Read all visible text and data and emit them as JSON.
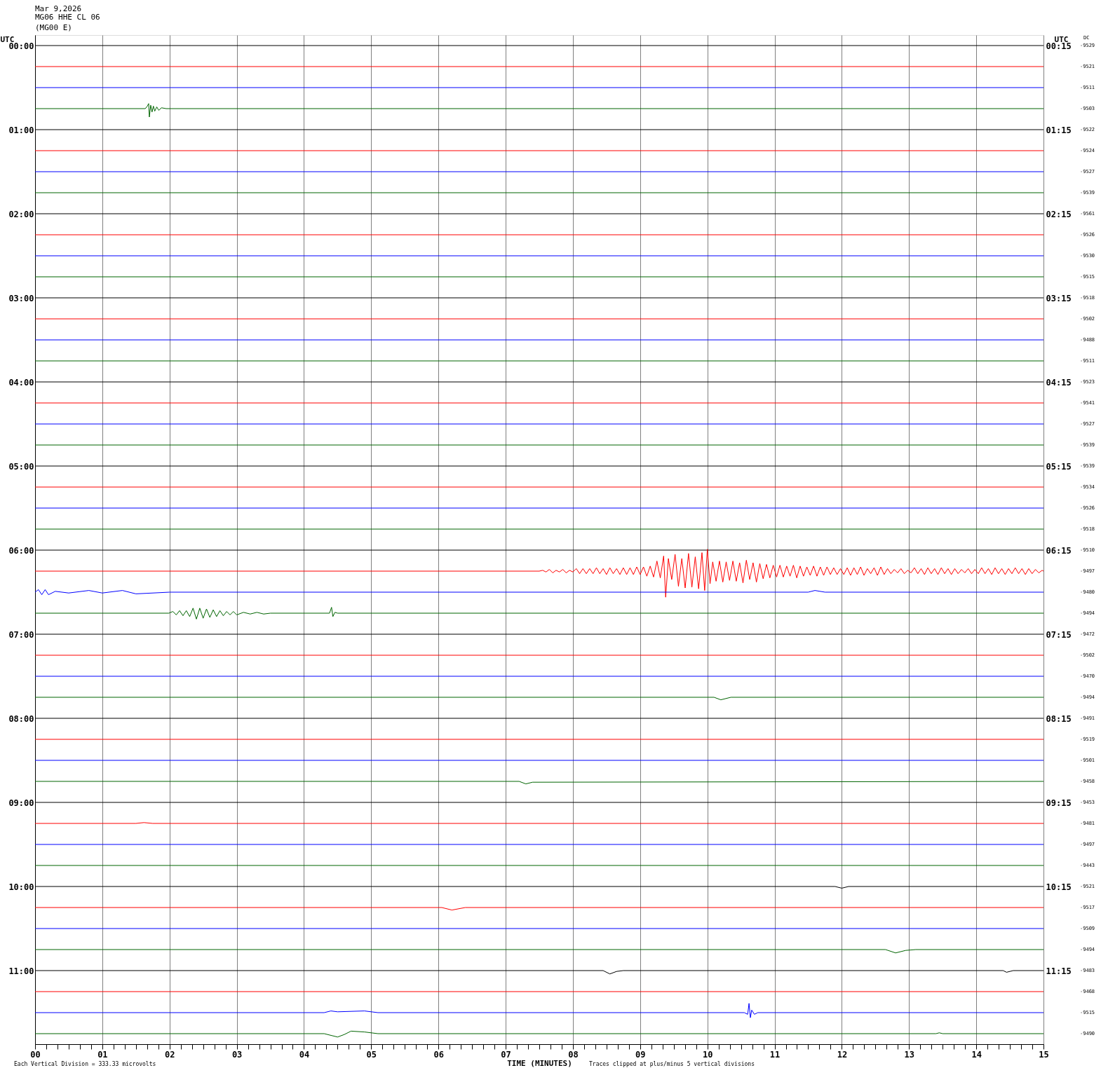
{
  "chart_data": {
    "type": "line",
    "title": "Mar 9,2026",
    "subtitle": "MG06 HHE CL 06\n(MG00 E)",
    "xlabel": "TIME (MINUTES)",
    "ylabel": "UTC",
    "y2label": "UTC",
    "annotations": [
      "Each Vertical Division =  333.33 microvolts",
      "Traces clipped at plus/minus 5 vertical divisions",
      "DC",
      "-9529",
      "-9521",
      "-9511",
      "-9503",
      "-9522",
      "-9524",
      "-9527",
      "-9539",
      "-9561",
      "-9526",
      "-9530",
      "-9515",
      "-9518",
      "-9502",
      "-9488",
      "-9511",
      "-9523",
      "-9541",
      "-9527",
      "-9539",
      "-9539",
      "-9534",
      "-9526",
      "-9518",
      "-9510",
      "-9497",
      "-9480",
      "-9494",
      "-9472",
      "-9502",
      "-9470",
      "-9494",
      "-9491",
      "-9519",
      "-9501",
      "-9458",
      "-9453",
      "-9481",
      "-9497",
      "-9443",
      "-9521",
      "-9517",
      "-9509",
      "-9494",
      "-9483",
      "-9468",
      "-9515",
      "-9490"
    ],
    "x": [
      0,
      15
    ],
    "xlim": [
      0,
      15
    ],
    "xticks": [
      {
        "value": 0,
        "label": "00"
      },
      {
        "value": 0.167,
        "label": null
      },
      {
        "value": 0.333,
        "label": null
      },
      {
        "value": 0.5,
        "label": null
      },
      {
        "value": 0.667,
        "label": null
      },
      {
        "value": 0.833,
        "label": null
      },
      {
        "value": 1,
        "label": "01"
      },
      {
        "value": 1.167,
        "label": null
      },
      {
        "value": 1.333,
        "label": null
      },
      {
        "value": 1.5,
        "label": null
      },
      {
        "value": 1.667,
        "label": null
      },
      {
        "value": 1.833,
        "label": null
      },
      {
        "value": 2,
        "label": "02"
      },
      {
        "value": 2.167,
        "label": null
      },
      {
        "value": 2.333,
        "label": null
      },
      {
        "value": 2.5,
        "label": null
      },
      {
        "value": 2.667,
        "label": null
      },
      {
        "value": 2.833,
        "label": null
      },
      {
        "value": 3,
        "label": "03"
      },
      {
        "value": 3.167,
        "label": null
      },
      {
        "value": 3.333,
        "label": null
      },
      {
        "value": 3.5,
        "label": null
      },
      {
        "value": 3.667,
        "label": null
      },
      {
        "value": 3.833,
        "label": null
      },
      {
        "value": 4,
        "label": "04"
      },
      {
        "value": 4.167,
        "label": null
      },
      {
        "value": 4.333,
        "label": null
      },
      {
        "value": 4.5,
        "label": null
      },
      {
        "value": 4.667,
        "label": null
      },
      {
        "value": 4.833,
        "label": null
      },
      {
        "value": 5,
        "label": "05"
      },
      {
        "value": 5.167,
        "label": null
      },
      {
        "value": 5.333,
        "label": null
      },
      {
        "value": 5.5,
        "label": null
      },
      {
        "value": 5.667,
        "label": null
      },
      {
        "value": 5.833,
        "label": null
      },
      {
        "value": 6,
        "label": "06"
      },
      {
        "value": 6.167,
        "label": null
      },
      {
        "value": 6.333,
        "label": null
      },
      {
        "value": 6.5,
        "label": null
      },
      {
        "value": 6.667,
        "label": null
      },
      {
        "value": 6.833,
        "label": null
      },
      {
        "value": 7,
        "label": "07"
      },
      {
        "value": 7.167,
        "label": null
      },
      {
        "value": 7.333,
        "label": null
      },
      {
        "value": 7.5,
        "label": null
      },
      {
        "value": 7.667,
        "label": null
      },
      {
        "value": 7.833,
        "label": null
      },
      {
        "value": 8,
        "label": "08"
      },
      {
        "value": 8.167,
        "label": null
      },
      {
        "value": 8.333,
        "label": null
      },
      {
        "value": 8.5,
        "label": null
      },
      {
        "value": 8.667,
        "label": null
      },
      {
        "value": 8.833,
        "label": null
      },
      {
        "value": 9,
        "label": "09"
      },
      {
        "value": 9.167,
        "label": null
      },
      {
        "value": 9.333,
        "label": null
      },
      {
        "value": 9.5,
        "label": null
      },
      {
        "value": 9.667,
        "label": null
      },
      {
        "value": 9.833,
        "label": null
      },
      10,
      {
        "value": 10.167,
        "label": null
      },
      {
        "value": 10.333,
        "label": null
      },
      {
        "value": 10.5,
        "label": null
      },
      {
        "value": 10.667,
        "label": null
      },
      {
        "value": 10.833,
        "label": null
      },
      11,
      {
        "value": 11.167,
        "label": null
      },
      {
        "value": 11.333,
        "label": null
      },
      {
        "value": 11.5,
        "label": null
      },
      {
        "value": 11.667,
        "label": null
      },
      {
        "value": 11.833,
        "label": null
      },
      12,
      {
        "value": 12.167,
        "label": null
      },
      {
        "value": 12.333,
        "label": null
      },
      {
        "value": 12.5,
        "label": null
      },
      {
        "value": 12.667,
        "label": null
      },
      {
        "value": 12.833,
        "label": null
      },
      13,
      {
        "value": 13.167,
        "label": null
      },
      {
        "value": 13.333,
        "label": null
      },
      {
        "value": 13.5,
        "label": null
      },
      {
        "value": 13.667,
        "label": null
      },
      {
        "value": 13.833,
        "label": null
      },
      14,
      {
        "value": 14.167,
        "label": null
      },
      {
        "value": 14.333,
        "label": null
      },
      {
        "value": 14.5,
        "label": null
      },
      {
        "value": 14.667,
        "label": null
      },
      {
        "value": 14.833,
        "label": null
      },
      15
    ],
    "ylim": [
      11.875,
      -0.125
    ],
    "yticks": [
      {
        "value": 0,
        "label": "00:00"
      },
      {
        "value": 1,
        "label": "01:00"
      },
      {
        "value": 2,
        "label": "02:00"
      },
      {
        "value": 3,
        "label": "03:00"
      },
      {
        "value": 4,
        "label": "04:00"
      },
      {
        "value": 5,
        "label": "05:00"
      },
      {
        "value": 6,
        "label": "06:00"
      },
      {
        "value": 7,
        "label": "07:00"
      },
      {
        "value": 8,
        "label": "08:00"
      },
      {
        "value": 9,
        "label": "09:00"
      },
      {
        "value": 10,
        "label": "10:00"
      },
      {
        "value": 11,
        "label": "11:00"
      }
    ],
    "y2lim": [
      12.125,
      0.125
    ],
    "y2ticks": [
      {
        "value": 0.25,
        "label": "00:15"
      },
      {
        "value": 1.25,
        "label": "01:15"
      },
      {
        "value": 2.25,
        "label": "02:15"
      },
      {
        "value": 3.25,
        "label": "03:15"
      },
      {
        "value": 4.25,
        "label": "04:15"
      },
      {
        "value": 5.25,
        "label": "05:15"
      },
      {
        "value": 6.25,
        "label": "06:15"
      },
      {
        "value": 7.25,
        "label": "07:15"
      },
      {
        "value": 8.25,
        "label": "08:15"
      },
      {
        "value": 9.25,
        "label": "09:15"
      },
      {
        "value": 10.25,
        "label": "10:15"
      },
      {
        "value": 11.25,
        "label": "11:15"
      }
    ],
    "grid": "x",
    "legend": false,
    "series": [
      {
        "color": "#000000",
        "values": [
          0,
          0
        ]
      },
      {
        "color": "#ff0000",
        "values": [
          0.25,
          0.25
        ]
      },
      {
        "color": "#0000ff",
        "values": [
          0.5,
          0.5
        ]
      },
      {
        "color": "#006400",
        "x": [
          0,
          1.64,
          1.67,
          1.69,
          1.7,
          1.72,
          1.74,
          1.76,
          1.78,
          1.81,
          1.84,
          1.88,
          1.95,
          15
        ],
        "values": [
          0.75,
          0.75,
          0.72,
          0.69,
          0.85,
          0.71,
          0.79,
          0.72,
          0.78,
          0.73,
          0.77,
          0.74,
          0.75,
          0.75
        ]
      },
      {
        "color": "#000000",
        "values": [
          1,
          1
        ]
      },
      {
        "color": "#ff0000",
        "values": [
          1.25,
          1.25
        ]
      },
      {
        "color": "#0000ff",
        "values": [
          1.5,
          1.5
        ]
      },
      {
        "color": "#006400",
        "values": [
          1.75,
          1.75
        ]
      },
      {
        "color": "#000000",
        "values": [
          2,
          2
        ]
      },
      {
        "color": "#ff0000",
        "values": [
          2.25,
          2.25
        ]
      },
      {
        "color": "#0000ff",
        "values": [
          2.5,
          2.5
        ]
      },
      {
        "color": "#006400",
        "values": [
          2.75,
          2.75
        ]
      },
      {
        "color": "#000000",
        "values": [
          3,
          3
        ]
      },
      {
        "color": "#ff0000",
        "values": [
          3.25,
          3.25
        ]
      },
      {
        "color": "#0000ff",
        "values": [
          3.5,
          3.5
        ]
      },
      {
        "color": "#006400",
        "values": [
          3.75,
          3.75
        ]
      },
      {
        "color": "#000000",
        "values": [
          4,
          4
        ]
      },
      {
        "color": "#ff0000",
        "values": [
          4.25,
          4.25
        ]
      },
      {
        "color": "#0000ff",
        "values": [
          4.5,
          4.5
        ]
      },
      {
        "color": "#006400",
        "values": [
          4.75,
          4.75
        ]
      },
      {
        "color": "#000000",
        "values": [
          5,
          5
        ]
      },
      {
        "color": "#ff0000",
        "values": [
          5.25,
          5.25
        ]
      },
      {
        "color": "#0000ff",
        "values": [
          5.5,
          5.5
        ]
      },
      {
        "color": "#006400",
        "values": [
          5.75,
          5.75
        ]
      },
      {
        "color": "#000000",
        "values": [
          6,
          6
        ]
      },
      {
        "color": "#ff0000",
        "x": [
          0,
          7.5,
          7.55,
          7.6,
          7.65,
          7.7,
          7.75,
          7.8,
          7.85,
          7.9,
          7.95,
          8.0,
          8.05,
          8.1,
          8.15,
          8.2,
          8.25,
          8.3,
          8.35,
          8.4,
          8.45,
          8.5,
          8.55,
          8.6,
          8.65,
          8.7,
          8.75,
          8.8,
          8.85,
          8.9,
          8.95,
          9.0,
          9.05,
          9.1,
          9.15,
          9.2,
          9.25,
          9.3,
          9.35,
          9.38,
          9.42,
          9.47,
          9.52,
          9.57,
          9.62,
          9.67,
          9.72,
          9.77,
          9.82,
          9.87,
          9.92,
          9.96,
          10.0,
          10.04,
          10.08,
          10.13,
          10.18,
          10.23,
          10.28,
          10.33,
          10.38,
          10.43,
          10.48,
          10.53,
          10.58,
          10.63,
          10.68,
          10.73,
          10.78,
          10.83,
          10.88,
          10.93,
          10.98,
          11.03,
          11.08,
          11.13,
          11.18,
          11.23,
          11.28,
          11.33,
          11.38,
          11.43,
          11.48,
          11.53,
          11.58,
          11.63,
          11.68,
          11.73,
          11.78,
          11.83,
          11.88,
          11.93,
          11.98,
          12.03,
          12.08,
          12.13,
          12.18,
          12.23,
          12.28,
          12.33,
          12.38,
          12.43,
          12.48,
          12.53,
          12.58,
          12.63,
          12.68,
          12.73,
          12.78,
          12.83,
          12.88,
          12.93,
          12.98,
          13.03,
          13.08,
          13.13,
          13.18,
          13.23,
          13.28,
          13.33,
          13.38,
          13.43,
          13.48,
          13.53,
          13.58,
          13.63,
          13.68,
          13.73,
          13.78,
          13.83,
          13.88,
          13.93,
          13.98,
          14.03,
          14.08,
          14.13,
          14.18,
          14.23,
          14.28,
          14.33,
          14.38,
          14.43,
          14.48,
          14.53,
          14.58,
          14.63,
          14.68,
          14.73,
          14.78,
          14.83,
          14.88,
          14.93,
          14.98,
          15
        ],
        "values": [
          6.25,
          6.25,
          6.24,
          6.26,
          6.23,
          6.27,
          6.24,
          6.26,
          6.23,
          6.27,
          6.24,
          6.26,
          6.22,
          6.28,
          6.22,
          6.28,
          6.22,
          6.28,
          6.21,
          6.28,
          6.22,
          6.29,
          6.21,
          6.28,
          6.22,
          6.29,
          6.21,
          6.29,
          6.21,
          6.29,
          6.2,
          6.29,
          6.2,
          6.31,
          6.19,
          6.32,
          6.13,
          6.33,
          6.07,
          6.56,
          6.1,
          6.35,
          6.05,
          6.43,
          6.1,
          6.45,
          6.04,
          6.44,
          6.08,
          6.46,
          6.03,
          6.48,
          5.99,
          6.4,
          6.14,
          6.37,
          6.13,
          6.38,
          6.14,
          6.36,
          6.13,
          6.37,
          6.15,
          6.39,
          6.12,
          6.35,
          6.15,
          6.38,
          6.16,
          6.34,
          6.17,
          6.33,
          6.18,
          6.32,
          6.18,
          6.32,
          6.19,
          6.31,
          6.18,
          6.33,
          6.19,
          6.31,
          6.2,
          6.3,
          6.19,
          6.31,
          6.2,
          6.3,
          6.2,
          6.29,
          6.21,
          6.29,
          6.22,
          6.29,
          6.21,
          6.3,
          6.21,
          6.29,
          6.2,
          6.3,
          6.22,
          6.28,
          6.21,
          6.3,
          6.2,
          6.29,
          6.22,
          6.28,
          6.23,
          6.27,
          6.22,
          6.28,
          6.24,
          6.27,
          6.21,
          6.28,
          6.22,
          6.29,
          6.21,
          6.28,
          6.22,
          6.29,
          6.21,
          6.28,
          6.22,
          6.29,
          6.22,
          6.28,
          6.23,
          6.27,
          6.22,
          6.28,
          6.23,
          6.28,
          6.21,
          6.28,
          6.22,
          6.29,
          6.21,
          6.28,
          6.22,
          6.29,
          6.22,
          6.28,
          6.21,
          6.28,
          6.22,
          6.29,
          6.22,
          6.28,
          6.23,
          6.27,
          6.24,
          6.25
        ]
      },
      {
        "color": "#0000ff",
        "x": [
          0,
          0.05,
          0.1,
          0.15,
          0.2,
          0.3,
          0.5,
          0.8,
          1.0,
          1.3,
          1.5,
          2.0,
          11.5,
          11.6,
          11.75,
          15
        ],
        "values": [
          6.5,
          6.47,
          6.53,
          6.47,
          6.53,
          6.49,
          6.51,
          6.48,
          6.51,
          6.48,
          6.52,
          6.5,
          6.5,
          6.48,
          6.5,
          6.5
        ]
      },
      {
        "color": "#006400",
        "x": [
          0,
          1.99,
          2.05,
          2.1,
          2.15,
          2.2,
          2.25,
          2.3,
          2.35,
          2.4,
          2.45,
          2.5,
          2.55,
          2.6,
          2.65,
          2.7,
          2.75,
          2.8,
          2.85,
          2.9,
          2.95,
          3.0,
          3.1,
          3.2,
          3.3,
          3.4,
          3.5,
          4.38,
          4.41,
          4.43,
          4.46,
          4.5,
          15
        ],
        "values": [
          6.75,
          6.75,
          6.73,
          6.77,
          6.72,
          6.78,
          6.72,
          6.79,
          6.69,
          6.82,
          6.69,
          6.81,
          6.7,
          6.8,
          6.71,
          6.79,
          6.72,
          6.78,
          6.73,
          6.77,
          6.73,
          6.77,
          6.74,
          6.76,
          6.74,
          6.76,
          6.75,
          6.75,
          6.68,
          6.79,
          6.74,
          6.75,
          6.75
        ]
      },
      {
        "color": "#000000",
        "values": [
          7,
          7
        ]
      },
      {
        "color": "#ff0000",
        "values": [
          7.25,
          7.25
        ]
      },
      {
        "color": "#0000ff",
        "values": [
          7.5,
          7.5
        ]
      },
      {
        "color": "#006400",
        "x": [
          0,
          10.1,
          10.2,
          10.35,
          15
        ],
        "values": [
          7.75,
          7.75,
          7.78,
          7.75,
          7.75
        ]
      },
      {
        "color": "#000000",
        "values": [
          8,
          8
        ]
      },
      {
        "color": "#ff0000",
        "values": [
          8.25,
          8.25
        ]
      },
      {
        "color": "#0000ff",
        "values": [
          8.5,
          8.5
        ]
      },
      {
        "color": "#006400",
        "x": [
          0,
          7.2,
          7.3,
          7.4,
          15
        ],
        "values": [
          8.75,
          8.75,
          8.78,
          8.76,
          8.75
        ]
      },
      {
        "color": "#000000",
        "values": [
          9,
          9
        ]
      },
      {
        "color": "#ff0000",
        "x": [
          0,
          1.5,
          1.62,
          1.75,
          15
        ],
        "values": [
          9.25,
          9.25,
          9.24,
          9.25,
          9.25
        ]
      },
      {
        "color": "#0000ff",
        "values": [
          9.5,
          9.5
        ]
      },
      {
        "color": "#006400",
        "values": [
          9.75,
          9.75
        ]
      },
      {
        "color": "#000000",
        "x": [
          0,
          11.9,
          12.0,
          12.1,
          15
        ],
        "values": [
          10,
          10,
          10.02,
          10,
          10
        ]
      },
      {
        "color": "#ff0000",
        "x": [
          0,
          6.05,
          6.2,
          6.4,
          15
        ],
        "values": [
          10.25,
          10.25,
          10.28,
          10.25,
          10.25
        ]
      },
      {
        "color": "#0000ff",
        "values": [
          10.5,
          10.5
        ]
      },
      {
        "color": "#006400",
        "x": [
          0,
          12.65,
          12.8,
          12.95,
          13.1,
          15
        ],
        "values": [
          10.75,
          10.75,
          10.79,
          10.76,
          10.75,
          10.75
        ]
      },
      {
        "color": "#000000",
        "x": [
          0,
          8.45,
          8.55,
          8.65,
          8.75,
          14.4,
          14.45,
          14.55,
          15
        ],
        "values": [
          11,
          11,
          11.04,
          11.01,
          11,
          11,
          11.02,
          11,
          11
        ]
      },
      {
        "color": "#ff0000",
        "values": [
          11.25,
          11.25
        ]
      },
      {
        "color": "#0000ff",
        "x": [
          0,
          4.3,
          4.4,
          4.5,
          4.9,
          5.1,
          10.55,
          10.6,
          10.62,
          10.64,
          10.66,
          10.7,
          10.75,
          15
        ],
        "values": [
          11.5,
          11.5,
          11.48,
          11.49,
          11.48,
          11.5,
          11.5,
          11.52,
          11.39,
          11.56,
          11.47,
          11.52,
          11.5,
          11.5
        ]
      },
      {
        "color": "#006400",
        "x": [
          0,
          4.3,
          4.5,
          4.6,
          4.7,
          4.9,
          5.1,
          13.4,
          13.45,
          13.5,
          15
        ],
        "values": [
          11.75,
          11.75,
          11.79,
          11.76,
          11.72,
          11.73,
          11.75,
          11.75,
          11.74,
          11.75,
          11.75
        ]
      }
    ]
  }
}
